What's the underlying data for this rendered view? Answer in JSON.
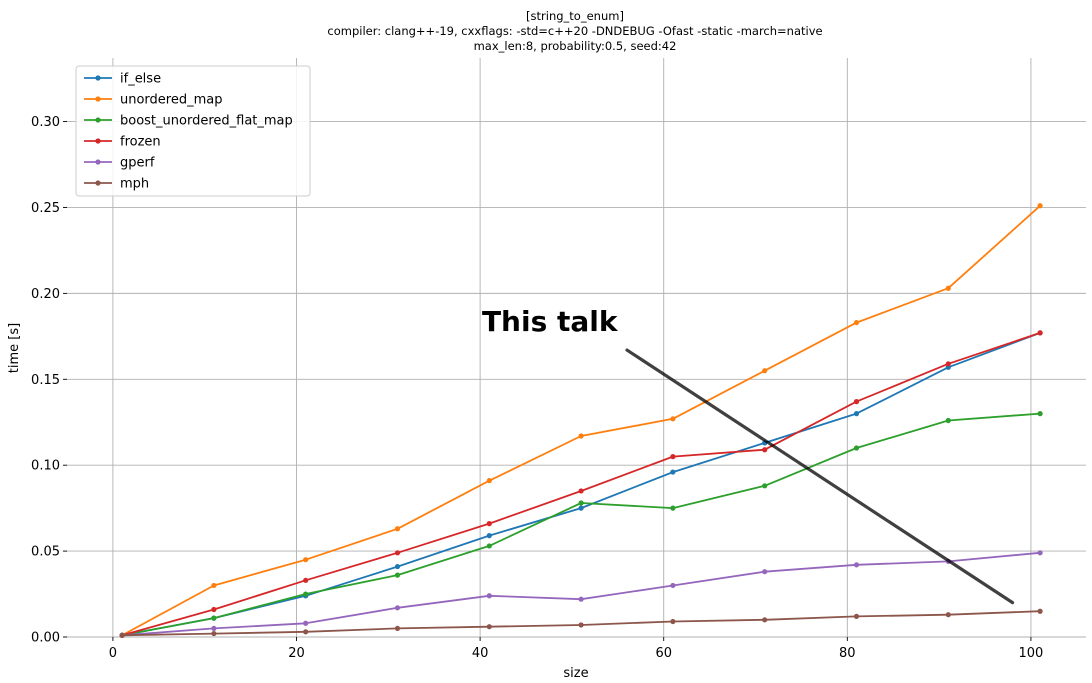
{
  "chart_data": {
    "type": "line",
    "title_lines": [
      "[string_to_enum]",
      "compiler: clang++-19, cxxflags: -std=c++20 -DNDEBUG -Ofast -static -march=native",
      "max_len:8, probability:0.5, seed:42"
    ],
    "xlabel": "size",
    "ylabel": "time [s]",
    "xlim": [
      -5,
      106
    ],
    "ylim": [
      0,
      0.337
    ],
    "xticks": [
      0,
      20,
      40,
      60,
      80,
      100
    ],
    "xtick_labels": [
      "0",
      "20",
      "40",
      "60",
      "80",
      "100"
    ],
    "yticks": [
      0.0,
      0.05,
      0.1,
      0.15,
      0.2,
      0.25,
      0.3
    ],
    "ytick_labels": [
      "0.00",
      "0.05",
      "0.10",
      "0.15",
      "0.20",
      "0.25",
      "0.30"
    ],
    "grid": true,
    "legend_position": "top-left",
    "x": [
      1,
      11,
      21,
      31,
      41,
      51,
      61,
      71,
      81,
      91,
      101
    ],
    "series": [
      {
        "name": "if_else",
        "color": "#1f77b4",
        "values": [
          0.001,
          0.011,
          0.024,
          0.041,
          0.059,
          0.075,
          0.096,
          0.113,
          0.13,
          0.157,
          0.177
        ]
      },
      {
        "name": "unordered_map",
        "color": "#ff7f0e",
        "values": [
          0.001,
          0.03,
          0.045,
          0.063,
          0.091,
          0.117,
          0.127,
          0.155,
          0.183,
          0.203,
          0.251
        ]
      },
      {
        "name": "boost_unordered_flat_map",
        "color": "#2ca02c",
        "values": [
          0.001,
          0.011,
          0.025,
          0.036,
          0.053,
          0.078,
          0.075,
          0.088,
          0.11,
          0.126,
          0.13
        ]
      },
      {
        "name": "frozen",
        "color": "#d62728",
        "values": [
          0.001,
          0.016,
          0.033,
          0.049,
          0.066,
          0.085,
          0.105,
          0.109,
          0.137,
          0.159,
          0.177
        ]
      },
      {
        "name": "gperf",
        "color": "#9467bd",
        "values": [
          0.001,
          0.005,
          0.008,
          0.017,
          0.024,
          0.022,
          0.03,
          0.038,
          0.042,
          0.044,
          0.049
        ]
      },
      {
        "name": "mph",
        "color": "#8c564b",
        "values": [
          0.001,
          0.002,
          0.003,
          0.005,
          0.006,
          0.007,
          0.009,
          0.01,
          0.012,
          0.013,
          0.015
        ]
      }
    ],
    "annotation": {
      "text": "This talk",
      "text_at": [
        40.2,
        0.178
      ],
      "arrow_from": [
        56,
        0.167
      ],
      "arrow_to": [
        98,
        0.02
      ],
      "color": "#000000"
    }
  }
}
